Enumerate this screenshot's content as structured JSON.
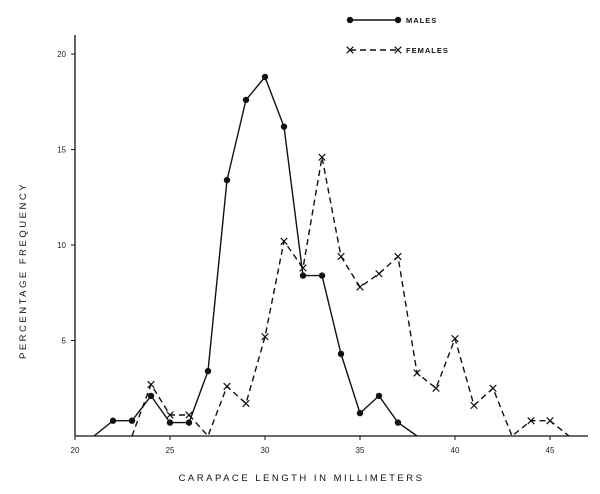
{
  "chart_data": {
    "type": "line",
    "xlabel": "CARAPACE LENGTH IN MILLIMETERS",
    "ylabel": "PERCENTAGE FREQUENCY",
    "xlim": [
      20,
      47
    ],
    "ylim": [
      0,
      21
    ],
    "xticks": [
      20,
      25,
      30,
      35,
      40,
      45
    ],
    "xtick_labels": [
      "20",
      "25",
      "30",
      "35",
      "40",
      "45"
    ],
    "yticks": [
      5,
      10,
      15,
      20
    ],
    "ytick_labels": [
      "5",
      "10",
      "15",
      "20"
    ],
    "legend_position": "top-right",
    "series": [
      {
        "name": "MALES",
        "marker": "dot",
        "line_style": "solid",
        "x": [
          21,
          22,
          23,
          24,
          25,
          26,
          27,
          28,
          29,
          30,
          31,
          32,
          33,
          34,
          35,
          36,
          37,
          38
        ],
        "y": [
          0,
          0.8,
          0.8,
          2.1,
          0.7,
          0.7,
          3.4,
          13.4,
          17.6,
          18.8,
          16.2,
          8.4,
          8.4,
          4.3,
          1.2,
          2.1,
          0.7,
          0
        ]
      },
      {
        "name": "FEMALES",
        "marker": "x",
        "line_style": "dashed",
        "x": [
          23,
          24,
          25,
          26,
          27,
          28,
          29,
          30,
          31,
          32,
          33,
          34,
          35,
          36,
          37,
          38,
          39,
          40,
          41,
          42,
          43,
          44,
          45,
          46
        ],
        "y": [
          0,
          2.7,
          1.1,
          1.1,
          0,
          2.6,
          1.7,
          5.2,
          10.2,
          8.8,
          14.6,
          9.4,
          7.8,
          8.5,
          9.4,
          3.3,
          2.5,
          5.1,
          1.6,
          2.5,
          0,
          0.8,
          0.8,
          0
        ]
      }
    ]
  }
}
